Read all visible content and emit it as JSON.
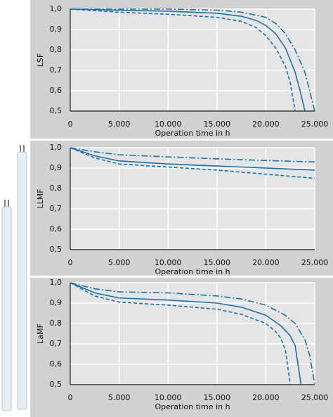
{
  "chart_data": [
    {
      "type": "line",
      "ylabel": "LSF",
      "xlabel": "Operation time in h",
      "xlim": [
        0,
        25000
      ],
      "ylim": [
        0.5,
        1.0
      ],
      "grid": true,
      "xticks": [
        0,
        {
          "value": 5000,
          "label": "5.000"
        },
        {
          "value": 10000,
          "label": "10.000"
        },
        {
          "value": 15000,
          "label": "15.000"
        },
        {
          "value": 20000,
          "label": "20.000"
        },
        {
          "value": 25000,
          "label": "25.000"
        }
      ],
      "yticks": [
        {
          "value": 0.5,
          "label": "0,5"
        },
        {
          "value": 0.6,
          "label": "0,6"
        },
        {
          "value": 0.7,
          "label": "0,7"
        },
        {
          "value": 0.8,
          "label": "0,8"
        },
        {
          "value": 0.9,
          "label": "0,9"
        },
        {
          "value": 1.0,
          "label": "1,0"
        }
      ],
      "series": [
        {
          "color": "#1f6fa0",
          "dash": "dashdot",
          "x": [
            0,
            5000,
            10000,
            15000,
            17500,
            20000,
            21000,
            22000,
            23000,
            24000,
            25000
          ],
          "values": [
            1.0,
            1.0,
            1.0,
            0.995,
            0.985,
            0.96,
            0.93,
            0.88,
            0.8,
            0.69,
            0.5
          ]
        },
        {
          "color": "#1f6fa0",
          "dash": "solid",
          "x": [
            0,
            5000,
            10000,
            15000,
            17500,
            19000,
            20000,
            21000,
            22000,
            23000,
            23500,
            24000
          ],
          "values": [
            1.0,
            0.995,
            0.99,
            0.98,
            0.965,
            0.945,
            0.92,
            0.88,
            0.81,
            0.69,
            0.6,
            0.5
          ]
        },
        {
          "color": "#1f6fa0",
          "dash": "dashed",
          "x": [
            0,
            5000,
            10000,
            15000,
            17500,
            19000,
            20000,
            21000,
            22000,
            22500,
            23000
          ],
          "values": [
            1.0,
            0.985,
            0.975,
            0.96,
            0.94,
            0.91,
            0.87,
            0.81,
            0.72,
            0.64,
            0.5
          ]
        }
      ]
    },
    {
      "type": "line",
      "ylabel": "LLMF",
      "xlabel": "Operation time in h",
      "xlim": [
        0,
        25000
      ],
      "ylim": [
        0.5,
        1.0
      ],
      "grid": true,
      "xticks": [
        0,
        {
          "value": 5000,
          "label": "5.000"
        },
        {
          "value": 10000,
          "label": "10.000"
        },
        {
          "value": 15000,
          "label": "15.000"
        },
        {
          "value": 20000,
          "label": "20.000"
        },
        {
          "value": 25000,
          "label": "25.000"
        }
      ],
      "yticks": [
        {
          "value": 0.5,
          "label": "0,5"
        },
        {
          "value": 0.6,
          "label": "0,6"
        },
        {
          "value": 0.7,
          "label": "0,7"
        },
        {
          "value": 0.8,
          "label": "0,8"
        },
        {
          "value": 0.9,
          "label": "0,9"
        },
        {
          "value": 1.0,
          "label": "1,0"
        }
      ],
      "series": [
        {
          "color": "#1f6fa0",
          "dash": "dashdot",
          "x": [
            0,
            2500,
            5000,
            10000,
            15000,
            20000,
            25000
          ],
          "values": [
            1.0,
            0.98,
            0.965,
            0.955,
            0.945,
            0.937,
            0.93
          ]
        },
        {
          "color": "#1f6fa0",
          "dash": "solid",
          "x": [
            0,
            2500,
            5000,
            10000,
            15000,
            20000,
            25000
          ],
          "values": [
            1.0,
            0.96,
            0.935,
            0.92,
            0.91,
            0.9,
            0.89
          ]
        },
        {
          "color": "#1f6fa0",
          "dash": "dashed",
          "x": [
            0,
            2500,
            5000,
            10000,
            15000,
            20000,
            25000
          ],
          "values": [
            1.0,
            0.95,
            0.92,
            0.905,
            0.89,
            0.87,
            0.85
          ]
        }
      ]
    },
    {
      "type": "line",
      "ylabel": "LaMF",
      "xlabel": "Operation time in h",
      "xlim": [
        0,
        25000
      ],
      "ylim": [
        0.5,
        1.0
      ],
      "grid": true,
      "xticks": [
        0,
        {
          "value": 5000,
          "label": "5.000"
        },
        {
          "value": 10000,
          "label": "10.000"
        },
        {
          "value": 15000,
          "label": "15.000"
        },
        {
          "value": 20000,
          "label": "20.000"
        },
        {
          "value": 25000,
          "label": "25.000"
        }
      ],
      "yticks": [
        {
          "value": 0.5,
          "label": "0,5"
        },
        {
          "value": 0.6,
          "label": "0,6"
        },
        {
          "value": 0.7,
          "label": "0,7"
        },
        {
          "value": 0.8,
          "label": "0,8"
        },
        {
          "value": 0.9,
          "label": "0,9"
        },
        {
          "value": 1.0,
          "label": "1,0"
        }
      ],
      "series": [
        {
          "color": "#1f6fa0",
          "dash": "dashdot",
          "x": [
            0,
            2500,
            5000,
            10000,
            15000,
            17500,
            20000,
            22000,
            23000,
            24000,
            24500,
            25000
          ],
          "values": [
            1.0,
            0.97,
            0.955,
            0.95,
            0.935,
            0.92,
            0.89,
            0.84,
            0.8,
            0.72,
            0.64,
            0.5
          ]
        },
        {
          "color": "#1f6fa0",
          "dash": "solid",
          "x": [
            0,
            2500,
            5000,
            10000,
            15000,
            17500,
            20000,
            21500,
            22500,
            23000,
            23600
          ],
          "values": [
            1.0,
            0.95,
            0.925,
            0.915,
            0.9,
            0.88,
            0.84,
            0.79,
            0.74,
            0.69,
            0.5
          ]
        },
        {
          "color": "#1f6fa0",
          "dash": "dashed",
          "x": [
            0,
            2500,
            5000,
            10000,
            15000,
            17500,
            20000,
            21000,
            21500,
            22000,
            22500
          ],
          "values": [
            1.0,
            0.935,
            0.905,
            0.89,
            0.87,
            0.845,
            0.8,
            0.76,
            0.73,
            0.67,
            0.5
          ]
        }
      ]
    }
  ]
}
